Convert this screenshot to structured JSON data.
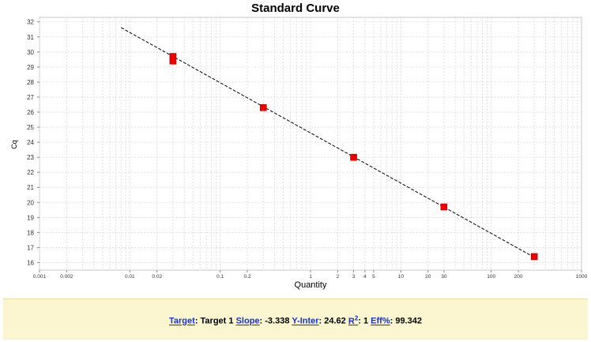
{
  "chart_data": {
    "type": "scatter",
    "title": "Standard Curve",
    "xlabel": "Quantity",
    "ylabel": "Cq",
    "x_scale": "log",
    "xlim": [
      0.001,
      1000
    ],
    "ylim": [
      15.5,
      32.3
    ],
    "x_tick_labels": [
      "0.001",
      "0.002",
      "0.01",
      "0.02",
      "0.1",
      "0.2",
      "1",
      "2",
      "3",
      "4",
      "5",
      "10",
      "20",
      "30",
      "100",
      "200",
      "1000"
    ],
    "x_tick_values": [
      0.001,
      0.002,
      0.01,
      0.02,
      0.1,
      0.2,
      1,
      2,
      3,
      4,
      5,
      10,
      20,
      30,
      100,
      200,
      1000
    ],
    "y_tick_labels": [
      "16",
      "17",
      "18",
      "19",
      "20",
      "21",
      "22",
      "23",
      "24",
      "25",
      "26",
      "27",
      "28",
      "29",
      "30",
      "31",
      "32"
    ],
    "y_tick_values": [
      16,
      17,
      18,
      19,
      20,
      21,
      22,
      23,
      24,
      25,
      26,
      27,
      28,
      29,
      30,
      31,
      32
    ],
    "grid": true,
    "points": [
      {
        "x": 0.03,
        "y": 29.7
      },
      {
        "x": 0.03,
        "y": 29.4
      },
      {
        "x": 0.3,
        "y": 26.3
      },
      {
        "x": 3,
        "y": 23.0
      },
      {
        "x": 30,
        "y": 19.7
      },
      {
        "x": 300,
        "y": 16.4
      }
    ],
    "fit_line": {
      "slope": -3.338,
      "intercept": 24.62,
      "x_start": 0.008,
      "x_end": 300
    },
    "marker_color": "#ee0000",
    "line_color": "#000000"
  },
  "footer": {
    "target_label": "Target",
    "target_value": ": Target 1",
    "slope_label": "Slope",
    "slope_value": ": -3.338",
    "yinter_label": "Y-Inter",
    "yinter_value": ": 24.62",
    "r2_label": "R",
    "r2_sup": "2",
    "r2_value": ": 1",
    "eff_label": "Eff%",
    "eff_value": ": 99.342"
  }
}
